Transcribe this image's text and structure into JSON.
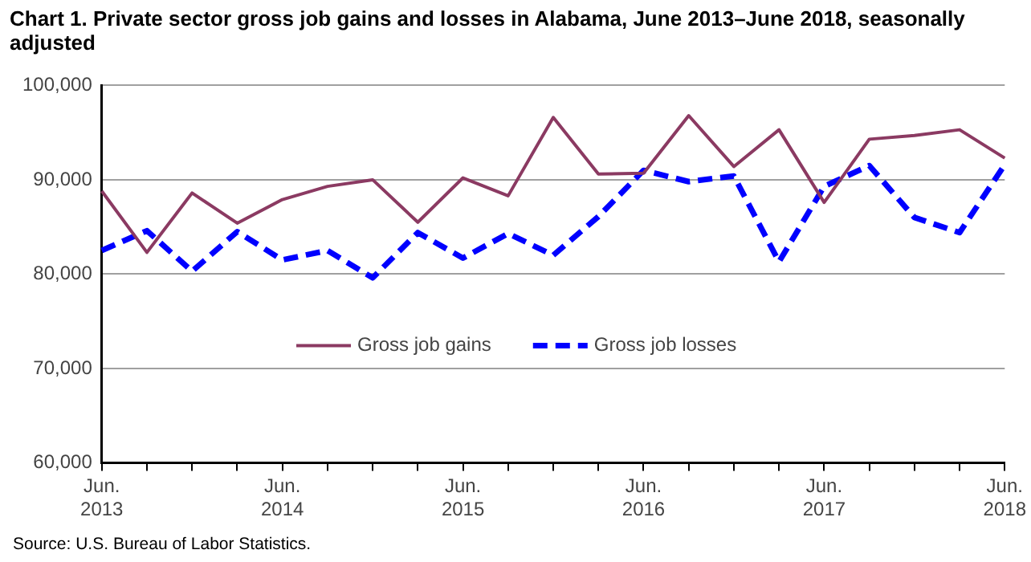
{
  "chart_data": {
    "type": "line",
    "title": "Chart 1. Private sector gross  job gains and losses  in Alabama, June 2013–June 2018, seasonally adjusted",
    "categories": [
      "Jun.\n2013",
      null,
      null,
      null,
      "Jun.\n2014",
      null,
      null,
      null,
      "Jun.\n2015",
      null,
      null,
      null,
      "Jun.\n2016",
      null,
      null,
      null,
      "Jun.\n2017",
      null,
      null,
      null,
      "Jun.\n2018"
    ],
    "series": [
      {
        "name": "Gross job gains",
        "color": "#8b3a62",
        "line_style": "solid",
        "values": [
          88800,
          82300,
          88600,
          85400,
          87900,
          89300,
          90000,
          85500,
          90200,
          88300,
          96600,
          90600,
          90700,
          96800,
          91400,
          95300,
          87600,
          94300,
          94700,
          95300,
          92300
        ]
      },
      {
        "name": "Gross job losses",
        "color": "#0000ff",
        "line_style": "dashed",
        "values": [
          82500,
          84600,
          80300,
          84500,
          81500,
          82500,
          79600,
          84400,
          81700,
          84300,
          82000,
          86100,
          91000,
          89800,
          90400,
          81300,
          89300,
          91500,
          86000,
          84400,
          91600
        ]
      }
    ],
    "ylim": [
      60000,
      100000
    ],
    "yticks": [
      {
        "value": 60000,
        "label": "60,000"
      },
      {
        "value": 70000,
        "label": "70,000"
      },
      {
        "value": 80000,
        "label": "80,000"
      },
      {
        "value": 90000,
        "label": "90,000"
      },
      {
        "value": 100000,
        "label": "100,000"
      }
    ],
    "grid": "y",
    "legend": "bottom",
    "marker": "none",
    "annotations": [
      "Source: U.S. Bureau of Labor Statistics."
    ]
  }
}
